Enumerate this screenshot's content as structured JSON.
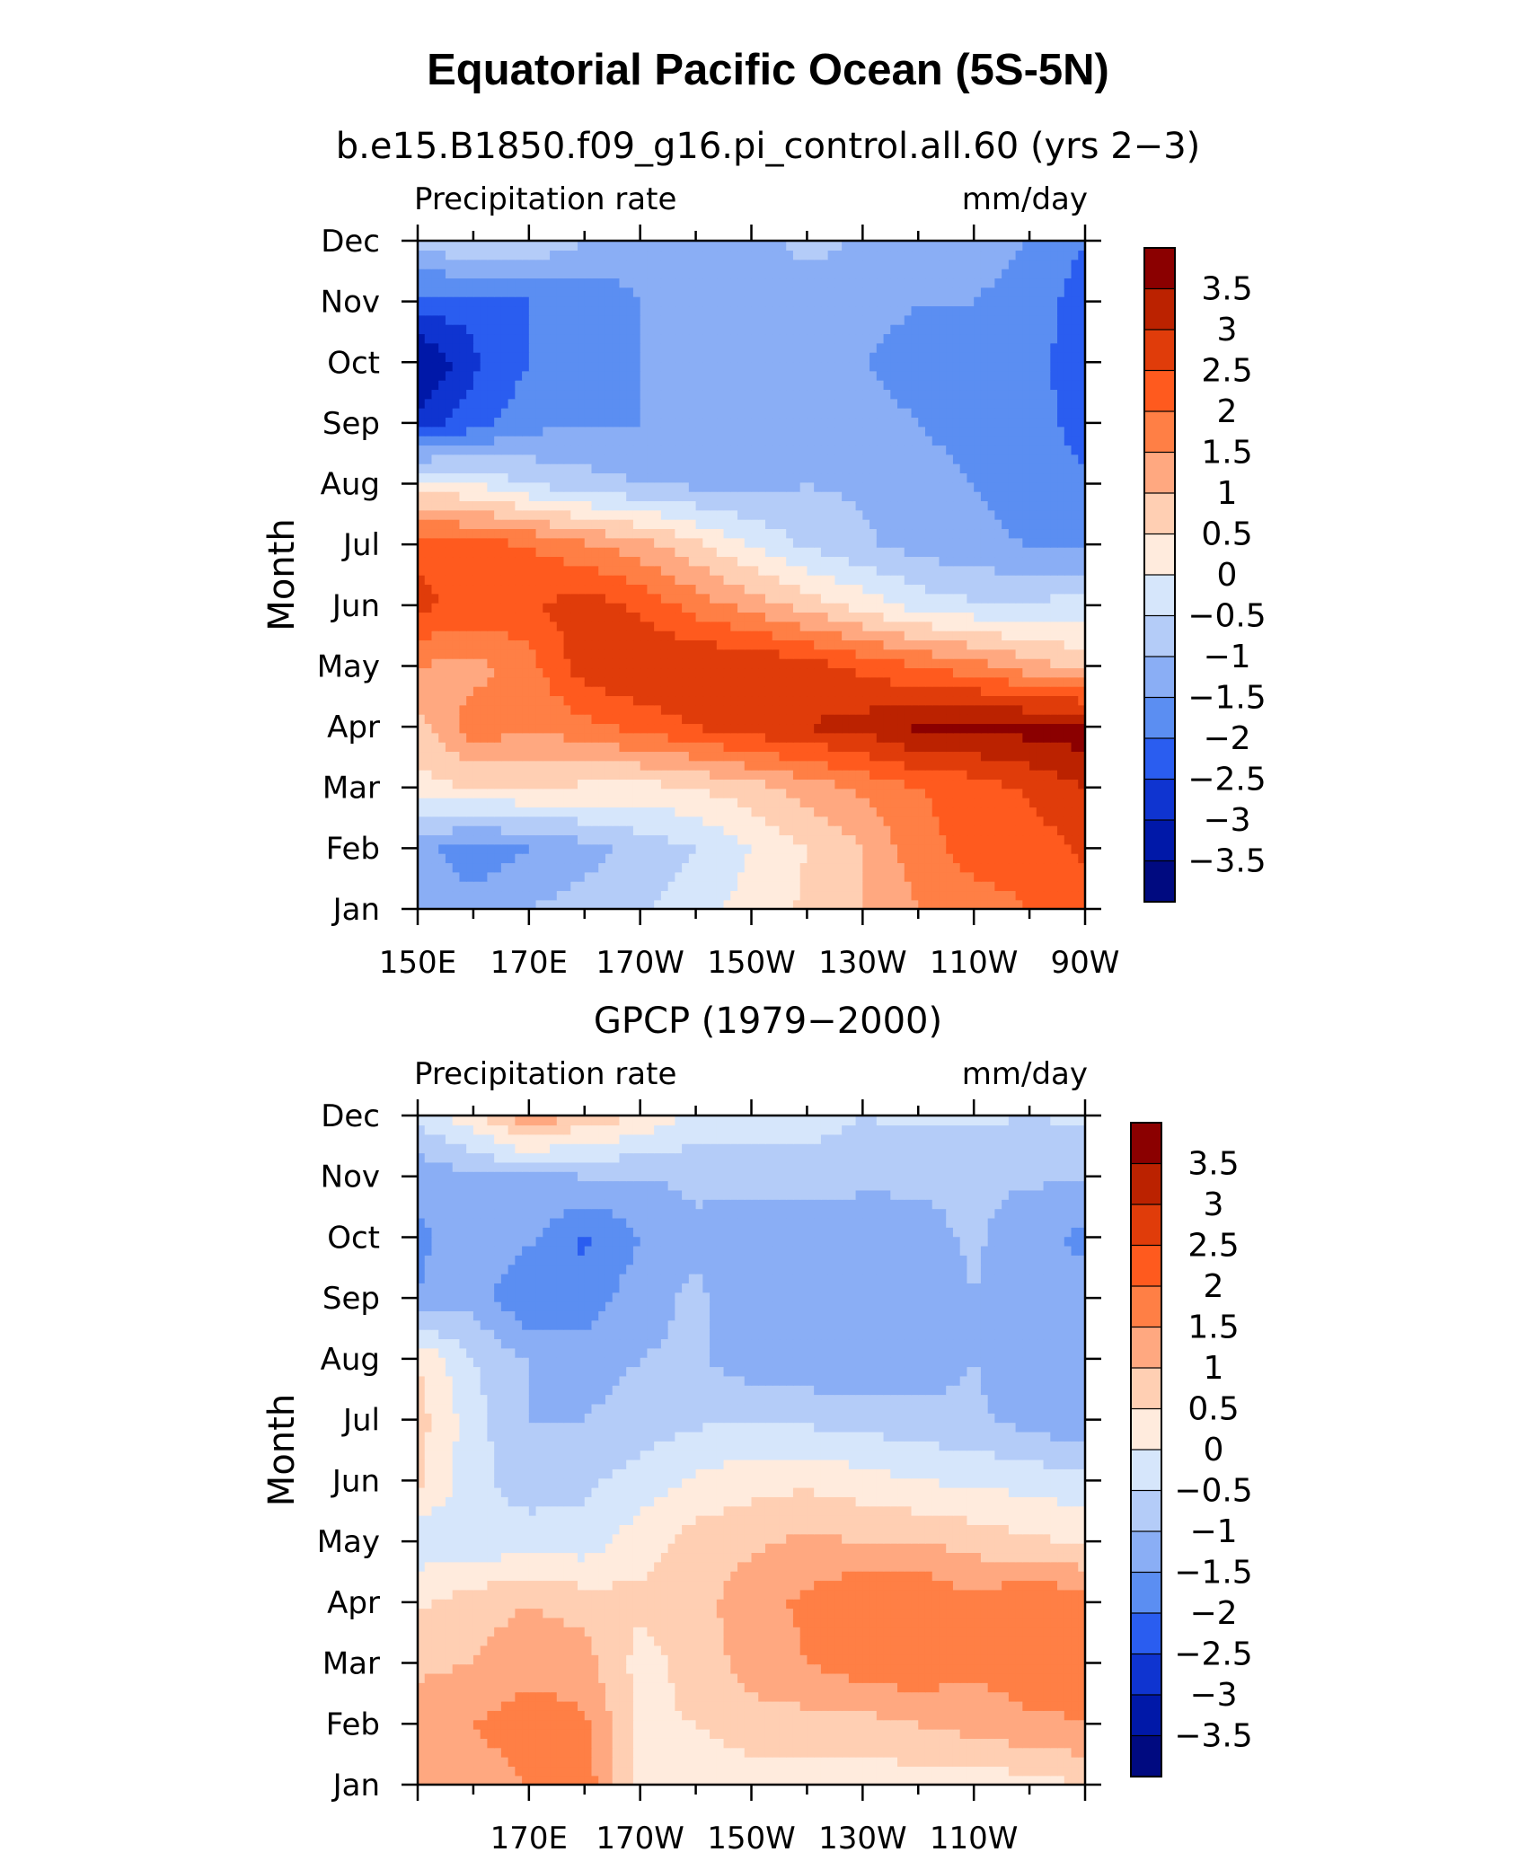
{
  "figure": {
    "title": "Equatorial Pacific Ocean (5S-5N)"
  },
  "colorbar": {
    "levels": [
      "3.5",
      "3",
      "2.5",
      "2",
      "1.5",
      "1",
      "0.5",
      "0",
      "−0.5",
      "−1",
      "−1.5",
      "−2",
      "−2.5",
      "−3",
      "−3.5"
    ],
    "colors": [
      "#8b0000",
      "#bb2200",
      "#e03c0a",
      "#ff5a1e",
      "#ff7f45",
      "#ffa880",
      "#ffcfb3",
      "#ffebdd",
      "#d6e6fb",
      "#b4ccf8",
      "#8aaef5",
      "#5b8ef2",
      "#2a5df0",
      "#0f34d0",
      "#0018a8",
      "#000a80"
    ]
  },
  "chart_data": [
    {
      "type": "heatmap",
      "subtitle": "b.e15.B1850.f09_g16.pi_control.all.60 (yrs 2−3)",
      "left_label": "Precipitation rate",
      "right_label": "mm/day",
      "ylabel": "Month",
      "xlim": [
        150,
        270
      ],
      "x_ticks": [
        "150E",
        "170E",
        "170W",
        "150W",
        "130W",
        "110W",
        "90W"
      ],
      "x_tick_values": [
        150,
        170,
        190,
        210,
        230,
        250,
        270
      ],
      "y_ticks": [
        "Jan",
        "Feb",
        "Mar",
        "Apr",
        "May",
        "Jun",
        "Jul",
        "Aug",
        "Sep",
        "Oct",
        "Nov",
        "Dec"
      ],
      "x": [
        150,
        160,
        170,
        180,
        190,
        200,
        210,
        220,
        230,
        240,
        250,
        260,
        270
      ],
      "values": [
        [
          -1.2,
          -1.3,
          -1.0,
          -0.8,
          -0.6,
          -0.2,
          0.2,
          0.6,
          1.0,
          1.5,
          1.8,
          2.0,
          2.3
        ],
        [
          -1.3,
          -1.8,
          -1.5,
          -1.2,
          -0.8,
          -0.5,
          0.0,
          0.5,
          1.0,
          1.8,
          2.2,
          2.2,
          2.6
        ],
        [
          0.3,
          0.5,
          0.5,
          0.4,
          0.3,
          0.5,
          0.8,
          1.2,
          1.6,
          2.0,
          2.2,
          2.6,
          3.0
        ],
        [
          0.8,
          1.8,
          1.6,
          1.8,
          2.2,
          2.5,
          2.8,
          3.0,
          3.2,
          3.6,
          3.7,
          3.7,
          3.8
        ],
        [
          1.5,
          1.3,
          1.8,
          2.8,
          3.0,
          3.0,
          3.0,
          2.7,
          2.4,
          2.0,
          1.7,
          1.2,
          0.8
        ],
        [
          2.6,
          2.4,
          2.4,
          2.8,
          2.4,
          1.8,
          1.3,
          0.8,
          0.3,
          -0.2,
          -0.4,
          -0.4,
          -0.3
        ],
        [
          2.4,
          2.2,
          2.0,
          1.6,
          1.2,
          0.6,
          0.0,
          -0.6,
          -0.9,
          -1.2,
          -1.4,
          -1.5,
          -1.6
        ],
        [
          0.2,
          0.0,
          -0.5,
          -0.8,
          -1.0,
          -1.1,
          -1.2,
          -1.0,
          -1.1,
          -1.4,
          -1.5,
          -1.7,
          -1.9
        ],
        [
          -2.8,
          -2.2,
          -1.7,
          -1.5,
          -1.5,
          -1.4,
          -1.3,
          -1.3,
          -1.4,
          -1.5,
          -1.6,
          -1.8,
          -2.2
        ],
        [
          -3.6,
          -2.6,
          -2.0,
          -1.6,
          -1.5,
          -1.4,
          -1.4,
          -1.5,
          -1.5,
          -1.6,
          -1.6,
          -1.8,
          -2.3
        ],
        [
          -2.2,
          -2.3,
          -2.0,
          -1.9,
          -1.5,
          -1.4,
          -1.4,
          -1.3,
          -1.4,
          -1.5,
          -1.5,
          -1.7,
          -2.3
        ],
        [
          -0.9,
          -0.4,
          -0.5,
          -1.0,
          -1.3,
          -1.2,
          -1.2,
          -0.8,
          -1.1,
          -1.2,
          -1.3,
          -1.5,
          -2.0
        ]
      ]
    },
    {
      "type": "heatmap",
      "subtitle": "GPCP (1979−2000)",
      "left_label": "Precipitation rate",
      "right_label": "mm/day",
      "ylabel": "Month",
      "xlim": [
        150,
        270
      ],
      "x_ticks": [
        "170E",
        "170W",
        "150W",
        "130W",
        "110W"
      ],
      "x_tick_values": [
        170,
        190,
        210,
        230,
        250
      ],
      "y_ticks": [
        "Jan",
        "Feb",
        "Mar",
        "Apr",
        "May",
        "Jun",
        "Jul",
        "Aug",
        "Sep",
        "Oct",
        "Nov",
        "Dec"
      ],
      "x": [
        150,
        160,
        170,
        180,
        190,
        200,
        210,
        220,
        230,
        240,
        250,
        260,
        270
      ],
      "values": [
        [
          1.2,
          1.2,
          1.5,
          1.8,
          0.3,
          0.1,
          0.2,
          0.2,
          0.3,
          0.2,
          0.2,
          0.3,
          0.5
        ],
        [
          1.2,
          1.5,
          1.8,
          1.6,
          0.4,
          0.5,
          0.8,
          0.8,
          0.8,
          1.0,
          1.2,
          1.4,
          1.5
        ],
        [
          0.9,
          1.0,
          1.3,
          1.2,
          0.3,
          0.7,
          1.2,
          1.5,
          1.8,
          1.9,
          1.6,
          1.8,
          1.7
        ],
        [
          0.4,
          0.8,
          1.0,
          0.8,
          0.6,
          0.8,
          1.3,
          1.6,
          2.0,
          2.0,
          1.6,
          2.0,
          1.8
        ],
        [
          -0.3,
          -0.4,
          -0.2,
          -0.3,
          0.3,
          0.7,
          0.9,
          1.1,
          1.0,
          1.0,
          0.8,
          0.6,
          0.4
        ],
        [
          0.6,
          -0.3,
          -0.8,
          -0.6,
          -0.3,
          0.1,
          0.3,
          0.4,
          0.2,
          0.0,
          -0.1,
          -0.2,
          -0.3
        ],
        [
          0.7,
          -0.3,
          -1.0,
          -1.0,
          -0.8,
          -0.6,
          -0.5,
          -0.6,
          -0.7,
          -0.8,
          -0.9,
          -1.2,
          -1.4
        ],
        [
          0.5,
          -0.5,
          -1.0,
          -1.2,
          -1.0,
          -0.9,
          -1.3,
          -1.4,
          -1.4,
          -1.3,
          -1.0,
          -1.3,
          -1.3
        ],
        [
          -1.5,
          -1.2,
          -2.0,
          -1.8,
          -1.2,
          -0.9,
          -1.4,
          -1.5,
          -1.5,
          -1.5,
          -1.0,
          -1.3,
          -1.3
        ],
        [
          -1.6,
          -1.2,
          -1.4,
          -2.1,
          -1.5,
          -1.1,
          -1.4,
          -1.5,
          -1.5,
          -1.2,
          -0.9,
          -1.4,
          -1.6
        ],
        [
          -1.4,
          -1.1,
          -1.1,
          -1.0,
          -1.0,
          -0.9,
          -0.8,
          -0.7,
          -0.8,
          -0.9,
          -0.9,
          -0.9,
          -1.0
        ],
        [
          -0.3,
          0.3,
          1.5,
          0.8,
          0.5,
          -0.2,
          -0.3,
          -0.3,
          -0.5,
          -0.4,
          -0.4,
          -0.5,
          -0.4
        ]
      ]
    }
  ]
}
